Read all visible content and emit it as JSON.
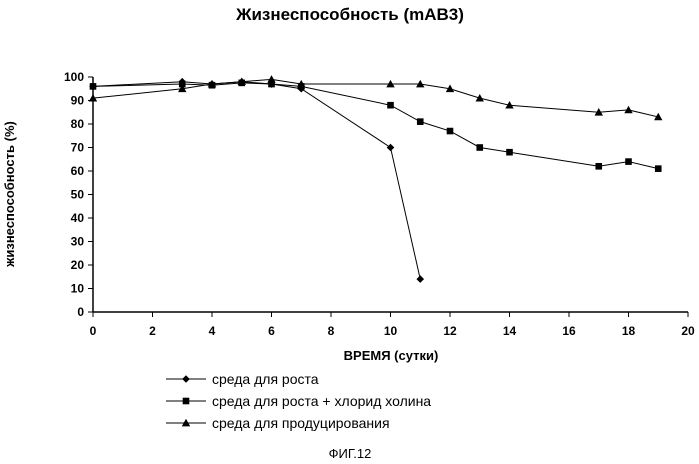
{
  "chart_data": {
    "type": "line",
    "title": "Жизнеспособность (mAB3)",
    "xlabel": "ВРЕМЯ (сутки)",
    "ylabel": "жизнеспособность (%)",
    "xlim": [
      0,
      20
    ],
    "ylim": [
      0,
      100
    ],
    "xticks": [
      0,
      2,
      4,
      6,
      8,
      10,
      12,
      14,
      16,
      18,
      20
    ],
    "yticks": [
      0,
      10,
      20,
      30,
      40,
      50,
      60,
      70,
      80,
      90,
      100
    ],
    "grid": false,
    "legend_position": "bottom-center",
    "series": [
      {
        "name": "среда для роста",
        "marker": "diamond",
        "x": [
          0,
          3,
          4,
          5,
          6,
          7,
          10,
          11
        ],
        "y": [
          96,
          98,
          97,
          98,
          97,
          95,
          70,
          14
        ]
      },
      {
        "name": "среда для роста + хлорид холина",
        "marker": "square",
        "x": [
          0,
          3,
          4,
          5,
          6,
          7,
          10,
          11,
          12,
          13,
          14,
          17,
          18,
          19
        ],
        "y": [
          96,
          97,
          96.5,
          97.5,
          97,
          96,
          88,
          81,
          77,
          70,
          68,
          62,
          64,
          61
        ]
      },
      {
        "name": "среда для продуцирования",
        "marker": "triangle",
        "x": [
          0,
          3,
          4,
          5,
          6,
          7,
          10,
          11,
          12,
          13,
          14,
          17,
          18,
          19
        ],
        "y": [
          91,
          95,
          97,
          98,
          99,
          97,
          97,
          97,
          95,
          91,
          88,
          85,
          86,
          83
        ]
      }
    ]
  },
  "caption": "ФИГ.12"
}
